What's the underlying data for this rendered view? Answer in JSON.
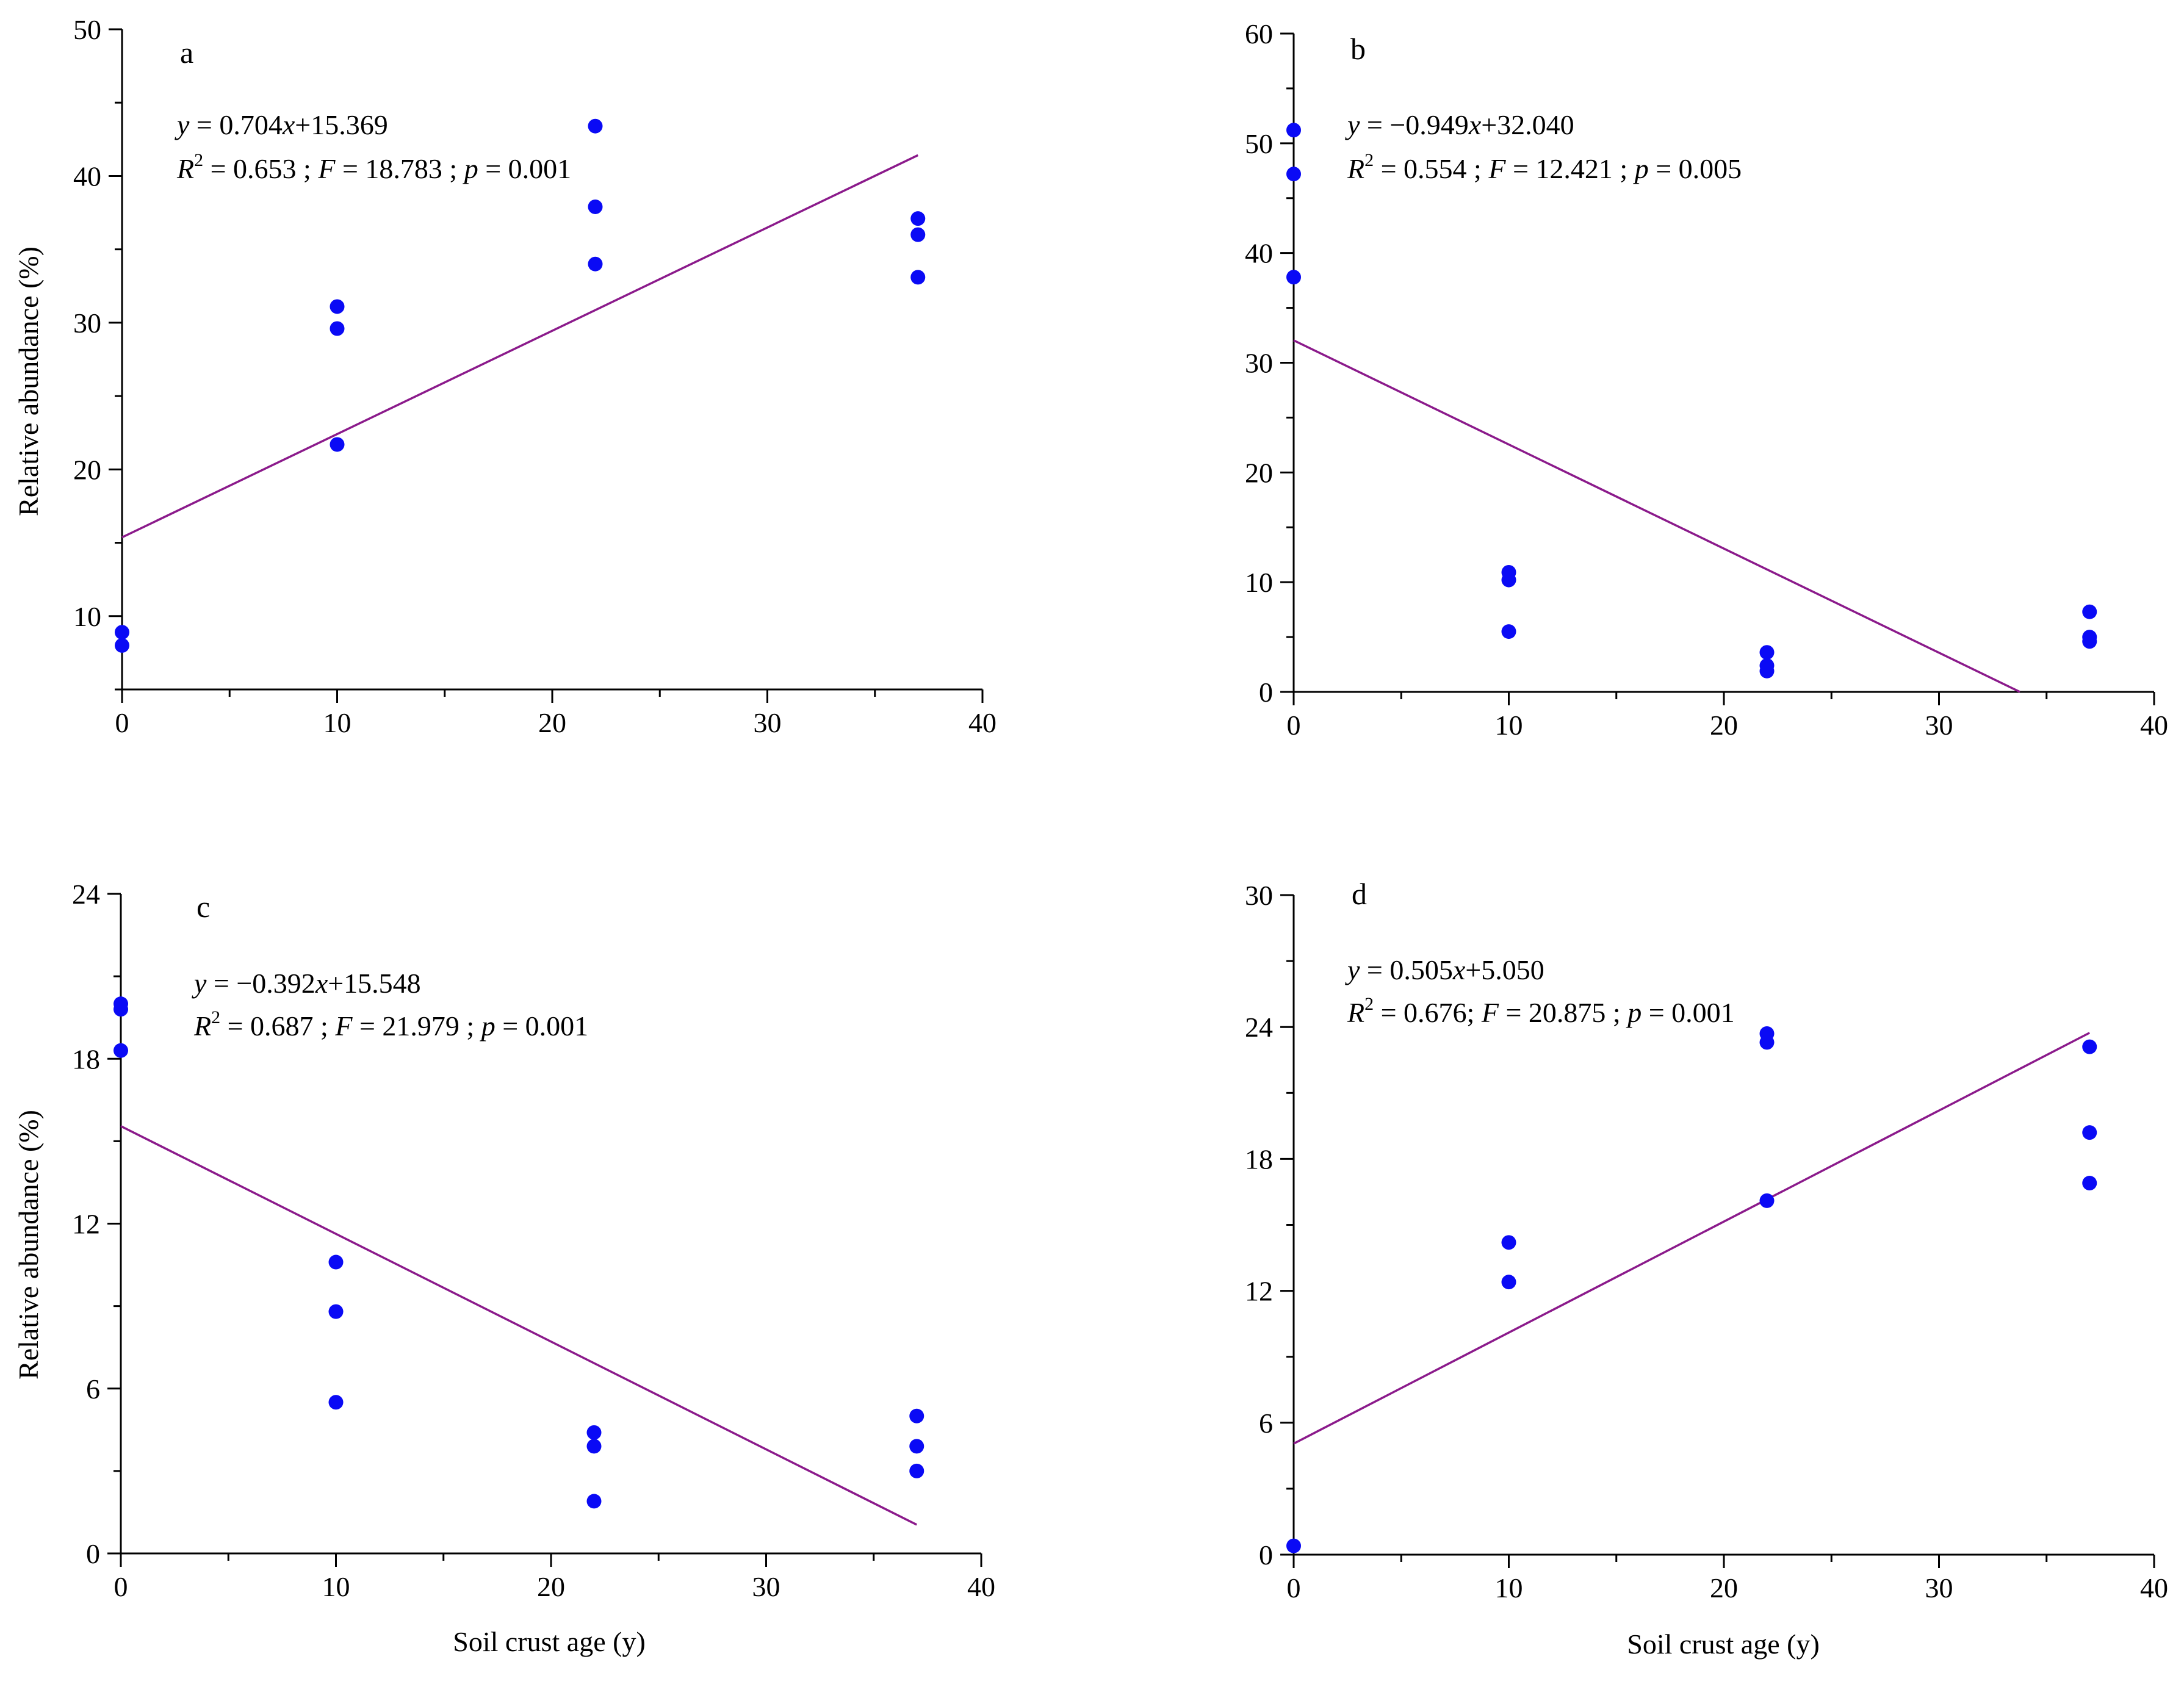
{
  "colors": {
    "points": "#0a0af5",
    "fit_line": "#8b1a8b",
    "axis": "#000000"
  },
  "chart_data": [
    {
      "type": "scatter",
      "panel_label": "a",
      "xlabel": "",
      "ylabel": "Relative abundance (%)",
      "xlim": [
        0,
        40
      ],
      "ylim": [
        5,
        50
      ],
      "xticks": [
        0,
        10,
        20,
        30,
        40
      ],
      "yticks": [
        10,
        20,
        30,
        40,
        50
      ],
      "points": [
        {
          "x": 0,
          "y": 8.9
        },
        {
          "x": 0,
          "y": 8.0
        },
        {
          "x": 10,
          "y": 31.1
        },
        {
          "x": 10,
          "y": 29.6
        },
        {
          "x": 10,
          "y": 21.7
        },
        {
          "x": 22,
          "y": 43.4
        },
        {
          "x": 22,
          "y": 37.9
        },
        {
          "x": 22,
          "y": 34.0
        },
        {
          "x": 37,
          "y": 37.1
        },
        {
          "x": 37,
          "y": 36.0
        },
        {
          "x": 37,
          "y": 33.1
        }
      ],
      "fit": {
        "slope": 0.704,
        "intercept": 15.369,
        "x_range": [
          0,
          37
        ]
      },
      "equation": {
        "y": "y",
        "eq": " = 0.704",
        "x": "x",
        "rest": "+15.369"
      },
      "stats": {
        "r": "R",
        "sup": "2",
        "r_val": " =  0.653 ;  ",
        "f": "F",
        "f_val": "  =  18.783 ;  ",
        "p": "p",
        "p_val": "  =  0.001"
      }
    },
    {
      "type": "scatter",
      "panel_label": "b",
      "xlabel": "",
      "ylabel": "",
      "xlim": [
        0,
        40
      ],
      "ylim": [
        0,
        60
      ],
      "xticks": [
        0,
        10,
        20,
        30,
        40
      ],
      "yticks": [
        0,
        10,
        20,
        30,
        40,
        50,
        60
      ],
      "points": [
        {
          "x": 0,
          "y": 51.2
        },
        {
          "x": 0,
          "y": 47.2
        },
        {
          "x": 0,
          "y": 37.8
        },
        {
          "x": 10,
          "y": 10.9
        },
        {
          "x": 10,
          "y": 10.2
        },
        {
          "x": 10,
          "y": 5.5
        },
        {
          "x": 22,
          "y": 3.6
        },
        {
          "x": 22,
          "y": 2.4
        },
        {
          "x": 22,
          "y": 1.9
        },
        {
          "x": 37,
          "y": 7.3
        },
        {
          "x": 37,
          "y": 5.0
        },
        {
          "x": 37,
          "y": 4.6
        }
      ],
      "fit": {
        "slope": -0.949,
        "intercept": 32.04,
        "x_range": [
          0,
          33.76
        ]
      },
      "equation": {
        "y": "y",
        "eq": " = −0.949",
        "x": "x",
        "rest": "+32.040"
      },
      "stats": {
        "r": "R",
        "sup": "2",
        "r_val": " =  0.554 ;  ",
        "f": "F",
        "f_val": "  =  12.421 ;  ",
        "p": "p",
        "p_val": "  =  0.005"
      }
    },
    {
      "type": "scatter",
      "panel_label": "c",
      "xlabel": "Soil crust age (y)",
      "ylabel": "Relative abundance (%)",
      "xlim": [
        0,
        40
      ],
      "ylim": [
        0,
        24
      ],
      "xticks": [
        0,
        10,
        20,
        30,
        40
      ],
      "yticks": [
        0,
        6,
        12,
        18,
        24
      ],
      "points": [
        {
          "x": 0,
          "y": 20.0
        },
        {
          "x": 0,
          "y": 19.8
        },
        {
          "x": 0,
          "y": 18.3
        },
        {
          "x": 10,
          "y": 10.6
        },
        {
          "x": 10,
          "y": 8.8
        },
        {
          "x": 10,
          "y": 5.5
        },
        {
          "x": 22,
          "y": 4.4
        },
        {
          "x": 22,
          "y": 3.9
        },
        {
          "x": 22,
          "y": 1.9
        },
        {
          "x": 37,
          "y": 5.0
        },
        {
          "x": 37,
          "y": 3.9
        },
        {
          "x": 37,
          "y": 3.0
        }
      ],
      "fit": {
        "slope": -0.392,
        "intercept": 15.548,
        "x_range": [
          0,
          37
        ]
      },
      "equation": {
        "y": "y",
        "eq": " = −0.392",
        "x": "x",
        "rest": "+15.548"
      },
      "stats": {
        "r": "R",
        "sup": "2",
        "r_val": " =  0.687 ;  ",
        "f": "F",
        "f_val": "  =  21.979 ;  ",
        "p": "p",
        "p_val": "  =  0.001"
      }
    },
    {
      "type": "scatter",
      "panel_label": "d",
      "xlabel": "Soil crust age (y)",
      "ylabel": "",
      "xlim": [
        0,
        40
      ],
      "ylim": [
        0,
        30
      ],
      "xticks": [
        0,
        10,
        20,
        30,
        40
      ],
      "yticks": [
        0,
        6,
        12,
        18,
        24,
        30
      ],
      "points": [
        {
          "x": 0,
          "y": 0.4
        },
        {
          "x": 10,
          "y": 14.2
        },
        {
          "x": 10,
          "y": 12.4
        },
        {
          "x": 22,
          "y": 23.7
        },
        {
          "x": 22,
          "y": 23.3
        },
        {
          "x": 22,
          "y": 16.1
        },
        {
          "x": 37,
          "y": 23.1
        },
        {
          "x": 37,
          "y": 19.2
        },
        {
          "x": 37,
          "y": 16.9
        }
      ],
      "fit": {
        "slope": 0.505,
        "intercept": 5.05,
        "x_range": [
          0,
          37
        ]
      },
      "equation": {
        "y": "y",
        "eq": " = 0.505",
        "x": "x",
        "rest": "+5.050"
      },
      "stats": {
        "r": "R",
        "sup": "2",
        "r_val": " =  0.676;  ",
        "f": "F",
        "f_val": "  =  20.875 ;  ",
        "p": "p",
        "p_val": "  =  0.001"
      }
    }
  ]
}
